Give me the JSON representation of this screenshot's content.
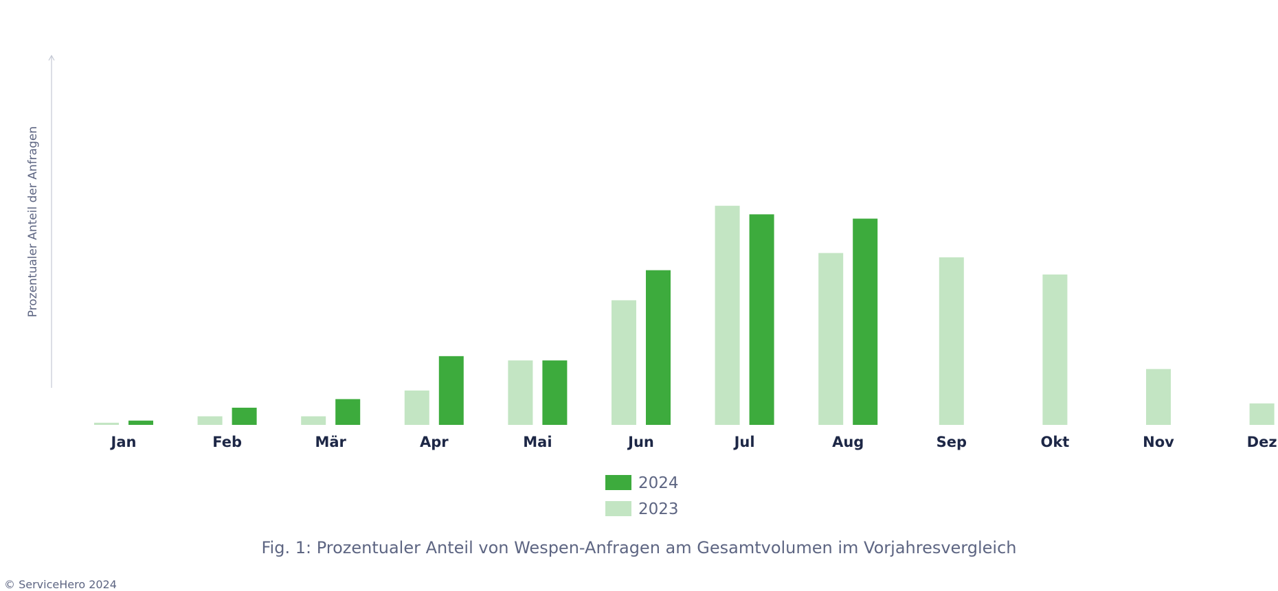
{
  "chart_data": {
    "type": "bar",
    "title": "",
    "xlabel": "",
    "ylabel": "Prozentualer Anteil der Anfragen",
    "ylim": [
      0,
      100
    ],
    "categories": [
      "Jan",
      "Feb",
      "Mär",
      "Apr",
      "Mai",
      "Jun",
      "Jul",
      "Aug",
      "Sep",
      "Okt",
      "Nov",
      "Dez"
    ],
    "series": [
      {
        "name": "2023",
        "color": "#c3e5c3",
        "values": [
          1,
          4,
          4,
          16,
          30,
          58,
          102,
          80,
          78,
          70,
          26,
          10
        ]
      },
      {
        "name": "2024",
        "color": "#3dab3d",
        "values": [
          2,
          8,
          12,
          32,
          30,
          72,
          98,
          96,
          null,
          null,
          null,
          null
        ]
      }
    ],
    "legend": {
      "position": "bottom-center",
      "order": [
        "2024",
        "2023"
      ]
    },
    "grid": false
  },
  "caption": "Fig. 1: Prozentualer Anteil von Wespen-Anfragen am Gesamtvolumen im Vorjahresvergleich",
  "copyright": "© ServiceHero 2024"
}
